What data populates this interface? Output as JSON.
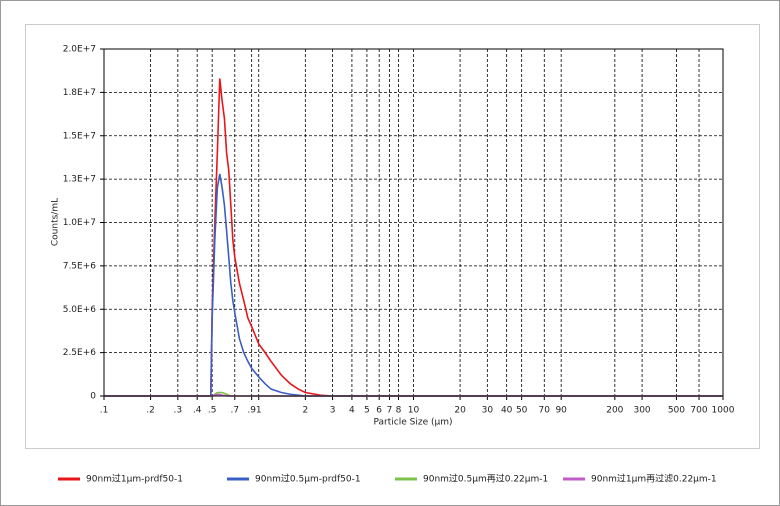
{
  "chart_data": {
    "type": "line",
    "xlabel": "Particle Size (μm)",
    "ylabel": "Counts/mL",
    "log_x": true,
    "grid": true,
    "xlim": [
      0.1,
      1000
    ],
    "xticks": [
      {
        "value": 0.1,
        "label": ".1"
      },
      {
        "value": 0.2,
        "label": ".2"
      },
      {
        "value": 0.3,
        "label": ".3"
      },
      {
        "value": 0.4,
        "label": ".4"
      },
      {
        "value": 0.5,
        "label": ".5"
      },
      {
        "value": 0.7,
        "label": ".7"
      },
      {
        "value": 0.9,
        "label": ".9"
      },
      1,
      2,
      3,
      4,
      5,
      6,
      7,
      8,
      10,
      20,
      30,
      40,
      50,
      70,
      90,
      200,
      300,
      500,
      700,
      1000
    ],
    "ylim": [
      0,
      20000000
    ],
    "yticks": [
      0,
      {
        "value": 2500000,
        "label": "2.5E+6"
      },
      {
        "value": 5000000,
        "label": "5.0E+6"
      },
      {
        "value": 7500000,
        "label": "7.5E+6"
      },
      {
        "value": 10000000,
        "label": "1.0E+7"
      },
      {
        "value": 12500000,
        "label": "1.3E+7"
      },
      {
        "value": 15000000,
        "label": "1.5E+7"
      },
      {
        "value": 17500000,
        "label": "1.8E+7"
      },
      {
        "value": 20000000,
        "label": "2.0E+7"
      }
    ],
    "x": [
      0.1,
      0.49,
      0.5,
      0.52,
      0.54,
      0.56,
      0.58,
      0.6,
      0.62,
      0.64,
      0.66,
      0.68,
      0.7,
      0.75,
      0.8,
      0.85,
      0.9,
      1.0,
      1.1,
      1.2,
      1.4,
      1.6,
      1.8,
      2.0,
      2.5,
      3,
      1000
    ],
    "series": [
      {
        "name": "90nm过1μm-prdf50-1",
        "color": "#e8161b",
        "values": [
          0,
          0,
          5000000,
          10000000,
          14000000,
          18300000,
          17000000,
          16000000,
          14000000,
          13000000,
          11000000,
          9000000,
          8000000,
          6500000,
          5500000,
          4500000,
          4000000,
          3000000,
          2500000,
          2000000,
          1200000,
          700000,
          400000,
          200000,
          50000,
          0,
          0
        ]
      },
      {
        "name": "90nm过0.5μm-prdf50-1",
        "color": "#3a5fc4",
        "values": [
          0,
          0,
          4500000,
          9000000,
          12000000,
          12800000,
          12000000,
          11000000,
          9500000,
          8000000,
          6500000,
          5500000,
          4800000,
          3300000,
          2500000,
          2000000,
          1600000,
          1100000,
          700000,
          400000,
          200000,
          100000,
          50000,
          0,
          0,
          0,
          0
        ]
      },
      {
        "name": "90nm过0.5μm再过0.22μm-1",
        "color": "#7cc24a",
        "values": [
          0,
          0,
          0,
          100000,
          200000,
          200000,
          200000,
          150000,
          100000,
          50000,
          0,
          0,
          0,
          0,
          0,
          0,
          0,
          0,
          0,
          0,
          0,
          0,
          0,
          0,
          0,
          0,
          0
        ]
      },
      {
        "name": "90nm过1μm再过滤0.22μm-1",
        "color": "#c05cc8",
        "values": [
          0,
          0,
          0,
          50000,
          80000,
          80000,
          50000,
          30000,
          0,
          0,
          0,
          0,
          0,
          0,
          0,
          0,
          0,
          0,
          0,
          0,
          0,
          0,
          0,
          0,
          0,
          0,
          0
        ]
      }
    ]
  }
}
